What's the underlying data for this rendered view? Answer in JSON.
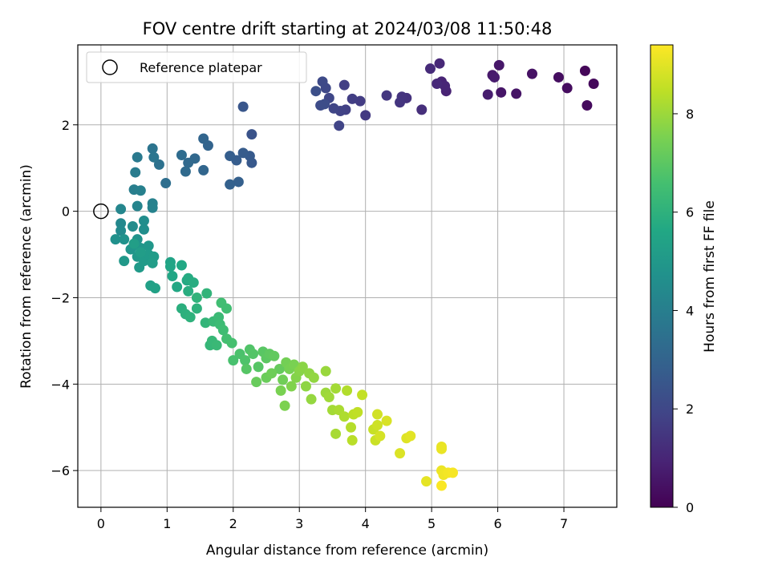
{
  "chart_data": {
    "type": "scatter",
    "title": "FOV centre drift starting at 2024/03/08 11:50:48",
    "xlabel": "Angular distance from reference (arcmin)",
    "ylabel": "Rotation from reference (arcmin)",
    "xlim": [
      -0.35,
      7.8
    ],
    "ylim": [
      -6.85,
      3.85
    ],
    "xticks": [
      "0",
      "1",
      "2",
      "3",
      "4",
      "5",
      "6",
      "7"
    ],
    "yticks": [
      "−6",
      "−4",
      "−2",
      "0",
      "2"
    ],
    "grid": true,
    "legend": {
      "placement": "top-left",
      "entries": [
        "Reference platepar"
      ]
    },
    "reference_point": {
      "x": 0,
      "y": 0
    },
    "colorbar": {
      "label": "Hours from first FF file",
      "range": [
        0,
        9.4
      ],
      "ticks": [
        "0",
        "2",
        "4",
        "6",
        "8"
      ],
      "colormap": "viridis"
    },
    "points": [
      {
        "x": 7.32,
        "y": 3.25,
        "h": 0.15
      },
      {
        "x": 7.45,
        "y": 2.95,
        "h": 0.2
      },
      {
        "x": 7.35,
        "y": 2.45,
        "h": 0.25
      },
      {
        "x": 7.05,
        "y": 2.85,
        "h": 0.3
      },
      {
        "x": 6.92,
        "y": 3.1,
        "h": 0.35
      },
      {
        "x": 6.52,
        "y": 3.18,
        "h": 0.45
      },
      {
        "x": 6.28,
        "y": 2.72,
        "h": 0.5
      },
      {
        "x": 6.05,
        "y": 2.75,
        "h": 0.55
      },
      {
        "x": 6.02,
        "y": 3.38,
        "h": 0.6
      },
      {
        "x": 5.92,
        "y": 3.15,
        "h": 0.65
      },
      {
        "x": 5.95,
        "y": 3.1,
        "h": 0.7
      },
      {
        "x": 5.85,
        "y": 2.7,
        "h": 0.75
      },
      {
        "x": 5.22,
        "y": 2.78,
        "h": 0.9
      },
      {
        "x": 5.15,
        "y": 3.0,
        "h": 0.95
      },
      {
        "x": 5.2,
        "y": 2.9,
        "h": 1.0
      },
      {
        "x": 5.12,
        "y": 3.42,
        "h": 1.05
      },
      {
        "x": 5.08,
        "y": 2.95,
        "h": 1.1
      },
      {
        "x": 4.98,
        "y": 3.3,
        "h": 1.15
      },
      {
        "x": 4.85,
        "y": 2.35,
        "h": 1.25
      },
      {
        "x": 4.62,
        "y": 2.62,
        "h": 1.35
      },
      {
        "x": 4.55,
        "y": 2.65,
        "h": 1.4
      },
      {
        "x": 4.52,
        "y": 2.52,
        "h": 1.45
      },
      {
        "x": 4.32,
        "y": 2.68,
        "h": 1.5
      },
      {
        "x": 4.0,
        "y": 2.22,
        "h": 1.6
      },
      {
        "x": 3.92,
        "y": 2.55,
        "h": 1.65
      },
      {
        "x": 3.8,
        "y": 2.6,
        "h": 1.7
      },
      {
        "x": 3.68,
        "y": 2.92,
        "h": 1.75
      },
      {
        "x": 3.7,
        "y": 2.35,
        "h": 1.8
      },
      {
        "x": 3.62,
        "y": 2.32,
        "h": 1.85
      },
      {
        "x": 3.6,
        "y": 1.98,
        "h": 1.9
      },
      {
        "x": 3.52,
        "y": 2.38,
        "h": 1.95
      },
      {
        "x": 3.45,
        "y": 2.62,
        "h": 2.0
      },
      {
        "x": 3.4,
        "y": 2.85,
        "h": 2.05
      },
      {
        "x": 3.35,
        "y": 3.0,
        "h": 2.1
      },
      {
        "x": 3.32,
        "y": 2.45,
        "h": 2.15
      },
      {
        "x": 3.38,
        "y": 2.48,
        "h": 2.2
      },
      {
        "x": 3.25,
        "y": 2.78,
        "h": 2.25
      },
      {
        "x": 2.28,
        "y": 1.78,
        "h": 2.4
      },
      {
        "x": 2.15,
        "y": 2.42,
        "h": 2.5
      },
      {
        "x": 2.28,
        "y": 1.12,
        "h": 2.6
      },
      {
        "x": 2.25,
        "y": 1.28,
        "h": 2.65
      },
      {
        "x": 2.15,
        "y": 1.35,
        "h": 2.7
      },
      {
        "x": 2.05,
        "y": 1.18,
        "h": 2.75
      },
      {
        "x": 1.95,
        "y": 1.28,
        "h": 2.8
      },
      {
        "x": 2.08,
        "y": 0.68,
        "h": 2.85
      },
      {
        "x": 1.95,
        "y": 0.62,
        "h": 2.9
      },
      {
        "x": 1.62,
        "y": 1.52,
        "h": 3.0
      },
      {
        "x": 1.55,
        "y": 1.68,
        "h": 3.05
      },
      {
        "x": 1.55,
        "y": 0.95,
        "h": 3.1
      },
      {
        "x": 1.42,
        "y": 1.22,
        "h": 3.15
      },
      {
        "x": 1.32,
        "y": 1.12,
        "h": 3.2
      },
      {
        "x": 1.28,
        "y": 0.92,
        "h": 3.25
      },
      {
        "x": 1.22,
        "y": 1.3,
        "h": 3.3
      },
      {
        "x": 0.98,
        "y": 0.65,
        "h": 3.4
      },
      {
        "x": 0.88,
        "y": 1.08,
        "h": 3.5
      },
      {
        "x": 0.78,
        "y": 1.45,
        "h": 3.6
      },
      {
        "x": 0.8,
        "y": 1.25,
        "h": 3.65
      },
      {
        "x": 0.55,
        "y": 1.25,
        "h": 3.8
      },
      {
        "x": 0.52,
        "y": 0.9,
        "h": 3.9
      },
      {
        "x": 0.5,
        "y": 0.5,
        "h": 4.0
      },
      {
        "x": 0.6,
        "y": 0.48,
        "h": 4.05
      },
      {
        "x": 0.78,
        "y": 0.18,
        "h": 4.1
      },
      {
        "x": 0.78,
        "y": 0.08,
        "h": 4.15
      },
      {
        "x": 0.55,
        "y": 0.12,
        "h": 4.2
      },
      {
        "x": 0.3,
        "y": 0.05,
        "h": 4.3
      },
      {
        "x": 0.3,
        "y": -0.28,
        "h": 4.35
      },
      {
        "x": 0.3,
        "y": -0.45,
        "h": 4.45
      },
      {
        "x": 0.48,
        "y": -0.35,
        "h": 4.5
      },
      {
        "x": 0.65,
        "y": -0.22,
        "h": 4.55
      },
      {
        "x": 0.65,
        "y": -0.42,
        "h": 4.6
      },
      {
        "x": 0.22,
        "y": -0.65,
        "h": 4.7
      },
      {
        "x": 0.35,
        "y": -0.65,
        "h": 4.75
      },
      {
        "x": 0.55,
        "y": -0.65,
        "h": 4.8
      },
      {
        "x": 0.45,
        "y": -0.88,
        "h": 4.85
      },
      {
        "x": 0.6,
        "y": -0.85,
        "h": 4.9
      },
      {
        "x": 0.72,
        "y": -0.8,
        "h": 4.95
      },
      {
        "x": 0.35,
        "y": -1.15,
        "h": 5.0
      },
      {
        "x": 0.55,
        "y": -1.05,
        "h": 5.0
      },
      {
        "x": 0.58,
        "y": -1.3,
        "h": 5.05
      },
      {
        "x": 0.65,
        "y": -1.15,
        "h": 5.1
      },
      {
        "x": 0.72,
        "y": -1.0,
        "h": 5.1
      },
      {
        "x": 0.8,
        "y": -1.05,
        "h": 5.15
      },
      {
        "x": 0.78,
        "y": -1.2,
        "h": 5.2
      },
      {
        "x": 0.6,
        "y": -0.95,
        "h": 5.2
      },
      {
        "x": 0.5,
        "y": -0.75,
        "h": 5.25
      },
      {
        "x": 0.75,
        "y": -1.72,
        "h": 5.3
      },
      {
        "x": 0.82,
        "y": -1.78,
        "h": 5.35
      },
      {
        "x": 1.05,
        "y": -1.18,
        "h": 5.45
      },
      {
        "x": 1.05,
        "y": -1.28,
        "h": 5.5
      },
      {
        "x": 1.08,
        "y": -1.5,
        "h": 5.55
      },
      {
        "x": 1.15,
        "y": -1.75,
        "h": 5.6
      },
      {
        "x": 1.22,
        "y": -1.25,
        "h": 5.65
      },
      {
        "x": 1.3,
        "y": -1.6,
        "h": 5.7
      },
      {
        "x": 1.32,
        "y": -1.55,
        "h": 5.75
      },
      {
        "x": 1.4,
        "y": -1.65,
        "h": 5.8
      },
      {
        "x": 1.32,
        "y": -1.85,
        "h": 5.85
      },
      {
        "x": 1.22,
        "y": -2.25,
        "h": 5.9
      },
      {
        "x": 1.28,
        "y": -2.38,
        "h": 5.95
      },
      {
        "x": 1.35,
        "y": -2.45,
        "h": 6.0
      },
      {
        "x": 1.45,
        "y": -2.25,
        "h": 6.0
      },
      {
        "x": 1.45,
        "y": -2.0,
        "h": 6.05
      },
      {
        "x": 1.6,
        "y": -1.9,
        "h": 6.1
      },
      {
        "x": 1.58,
        "y": -2.58,
        "h": 6.15
      },
      {
        "x": 1.65,
        "y": -3.1,
        "h": 6.2
      },
      {
        "x": 1.68,
        "y": -3.0,
        "h": 6.25
      },
      {
        "x": 1.75,
        "y": -3.1,
        "h": 6.3
      },
      {
        "x": 1.7,
        "y": -2.55,
        "h": 6.3
      },
      {
        "x": 1.78,
        "y": -2.45,
        "h": 6.35
      },
      {
        "x": 1.8,
        "y": -2.62,
        "h": 6.4
      },
      {
        "x": 1.85,
        "y": -2.75,
        "h": 6.45
      },
      {
        "x": 1.82,
        "y": -2.12,
        "h": 6.5
      },
      {
        "x": 1.9,
        "y": -2.25,
        "h": 6.5
      },
      {
        "x": 1.9,
        "y": -2.95,
        "h": 6.55
      },
      {
        "x": 1.98,
        "y": -3.05,
        "h": 6.6
      },
      {
        "x": 2.0,
        "y": -3.45,
        "h": 6.65
      },
      {
        "x": 2.1,
        "y": -3.3,
        "h": 6.7
      },
      {
        "x": 2.18,
        "y": -3.45,
        "h": 6.75
      },
      {
        "x": 2.25,
        "y": -3.2,
        "h": 6.8
      },
      {
        "x": 2.3,
        "y": -3.3,
        "h": 6.85
      },
      {
        "x": 2.38,
        "y": -3.6,
        "h": 6.9
      },
      {
        "x": 2.2,
        "y": -3.65,
        "h": 6.9
      },
      {
        "x": 2.45,
        "y": -3.25,
        "h": 6.95
      },
      {
        "x": 2.5,
        "y": -3.4,
        "h": 7.0
      },
      {
        "x": 2.55,
        "y": -3.3,
        "h": 7.05
      },
      {
        "x": 2.62,
        "y": -3.35,
        "h": 7.1
      },
      {
        "x": 2.7,
        "y": -3.65,
        "h": 7.15
      },
      {
        "x": 2.35,
        "y": -3.95,
        "h": 7.2
      },
      {
        "x": 2.5,
        "y": -3.85,
        "h": 7.25
      },
      {
        "x": 2.58,
        "y": -3.75,
        "h": 7.3
      },
      {
        "x": 2.75,
        "y": -3.9,
        "h": 7.35
      },
      {
        "x": 2.8,
        "y": -3.5,
        "h": 7.4
      },
      {
        "x": 2.85,
        "y": -3.65,
        "h": 7.45
      },
      {
        "x": 2.92,
        "y": -3.55,
        "h": 7.5
      },
      {
        "x": 2.72,
        "y": -4.15,
        "h": 7.5
      },
      {
        "x": 2.78,
        "y": -4.5,
        "h": 7.55
      },
      {
        "x": 2.88,
        "y": -4.05,
        "h": 7.6
      },
      {
        "x": 2.95,
        "y": -3.85,
        "h": 7.65
      },
      {
        "x": 3.0,
        "y": -3.7,
        "h": 7.7
      },
      {
        "x": 3.05,
        "y": -3.6,
        "h": 7.75
      },
      {
        "x": 3.1,
        "y": -4.05,
        "h": 7.8
      },
      {
        "x": 3.15,
        "y": -3.75,
        "h": 7.8
      },
      {
        "x": 3.22,
        "y": -3.85,
        "h": 7.85
      },
      {
        "x": 3.18,
        "y": -4.35,
        "h": 7.9
      },
      {
        "x": 3.4,
        "y": -3.7,
        "h": 7.95
      },
      {
        "x": 3.4,
        "y": -4.2,
        "h": 8.0
      },
      {
        "x": 3.45,
        "y": -4.3,
        "h": 8.05
      },
      {
        "x": 3.5,
        "y": -4.6,
        "h": 8.1
      },
      {
        "x": 3.55,
        "y": -4.1,
        "h": 8.1
      },
      {
        "x": 3.55,
        "y": -5.15,
        "h": 8.15
      },
      {
        "x": 3.6,
        "y": -4.6,
        "h": 8.2
      },
      {
        "x": 3.68,
        "y": -4.75,
        "h": 8.25
      },
      {
        "x": 3.72,
        "y": -4.15,
        "h": 8.3
      },
      {
        "x": 3.78,
        "y": -5.0,
        "h": 8.35
      },
      {
        "x": 3.8,
        "y": -5.3,
        "h": 8.4
      },
      {
        "x": 3.82,
        "y": -4.7,
        "h": 8.45
      },
      {
        "x": 3.88,
        "y": -4.65,
        "h": 8.5
      },
      {
        "x": 3.95,
        "y": -4.25,
        "h": 8.55
      },
      {
        "x": 4.12,
        "y": -5.05,
        "h": 8.6
      },
      {
        "x": 4.15,
        "y": -5.3,
        "h": 8.65
      },
      {
        "x": 4.18,
        "y": -4.95,
        "h": 8.7
      },
      {
        "x": 4.18,
        "y": -4.7,
        "h": 8.75
      },
      {
        "x": 4.22,
        "y": -5.2,
        "h": 8.8
      },
      {
        "x": 4.32,
        "y": -4.85,
        "h": 8.85
      },
      {
        "x": 4.52,
        "y": -5.6,
        "h": 8.9
      },
      {
        "x": 4.62,
        "y": -5.25,
        "h": 8.95
      },
      {
        "x": 4.68,
        "y": -5.2,
        "h": 9.0
      },
      {
        "x": 4.92,
        "y": -6.25,
        "h": 9.05
      },
      {
        "x": 5.15,
        "y": -5.45,
        "h": 9.1
      },
      {
        "x": 5.15,
        "y": -5.5,
        "h": 9.12
      },
      {
        "x": 5.15,
        "y": -6.0,
        "h": 9.15
      },
      {
        "x": 5.18,
        "y": -6.1,
        "h": 9.2
      },
      {
        "x": 5.25,
        "y": -6.05,
        "h": 9.25
      },
      {
        "x": 5.32,
        "y": -6.05,
        "h": 9.3
      },
      {
        "x": 5.15,
        "y": -6.35,
        "h": 9.35
      }
    ]
  }
}
